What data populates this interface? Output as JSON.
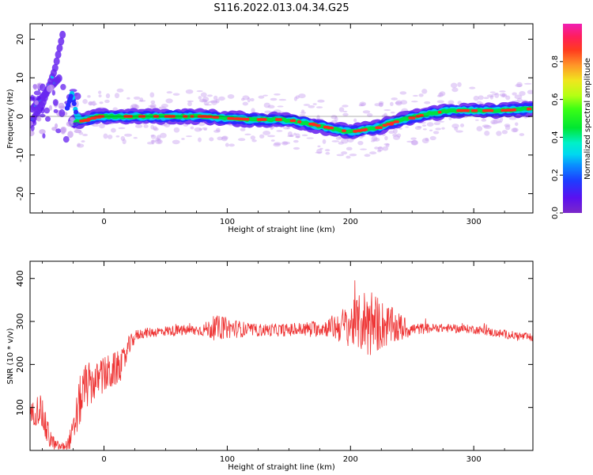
{
  "title": "S116.2022.013.04.34.G25",
  "chart_data": [
    {
      "type": "heatmap",
      "xlabel": "Height of straight line (km)",
      "ylabel": "Frequency (Hz)",
      "xlim": [
        -60,
        348
      ],
      "ylim": [
        -25,
        24
      ],
      "xticks": [
        "0",
        "100",
        "200",
        "300"
      ],
      "xtick_values": [
        0,
        100,
        200,
        300
      ],
      "yticks": [
        "20",
        "10",
        "0",
        "-10",
        "-20"
      ],
      "ytick_values": [
        20,
        10,
        0,
        -10,
        -20
      ],
      "colorbar": {
        "label": "Normalized spectral amplitude",
        "ticks": [
          "0.0",
          "0.2",
          "0.4",
          "0.6",
          "0.8"
        ],
        "tick_values": [
          0.0,
          0.2,
          0.4,
          0.6,
          0.8
        ],
        "range": [
          0,
          1
        ],
        "colormap": "gist_ncar-like (purple-blue-cyan-green-yellow-orange-red-magenta)"
      },
      "ridge": {
        "x": [
          -24,
          -16,
          -5,
          10,
          30,
          55,
          80,
          100,
          120,
          140,
          150,
          160,
          175,
          190,
          200,
          210,
          220,
          230,
          240,
          260,
          280,
          300,
          320,
          348
        ],
        "y": [
          -1.5,
          -1,
          0,
          0,
          0,
          0,
          0,
          -0.5,
          -0.8,
          -0.8,
          -1,
          -1.5,
          -2.5,
          -3.5,
          -4,
          -3.5,
          -3,
          -2,
          -1,
          0.5,
          1.5,
          1.5,
          1.5,
          2
        ]
      },
      "early_arcs": [
        {
          "x": [
            -60,
            -50,
            -40,
            -33
          ],
          "y": [
            -2,
            3,
            12,
            22
          ]
        },
        {
          "x": [
            -58,
            -50,
            -42,
            -36
          ],
          "y": [
            2,
            5,
            8,
            10
          ]
        }
      ]
    },
    {
      "type": "line",
      "xlabel": "Height of straight line (km)",
      "ylabel": "SNR (10 * v/v)",
      "xlim": [
        -60,
        348
      ],
      "ylim": [
        0,
        440
      ],
      "xticks": [
        "0",
        "100",
        "200",
        "300"
      ],
      "xtick_values": [
        0,
        100,
        200,
        300
      ],
      "yticks": [
        "400",
        "300",
        "200",
        "100"
      ],
      "ytick_values": [
        400,
        300,
        200,
        100
      ],
      "color": "#ee3333",
      "envelope": {
        "x": [
          -60,
          -52,
          -46,
          -40,
          -35,
          -30,
          -25,
          -20,
          -15,
          -10,
          -5,
          0,
          5,
          10,
          15,
          20,
          25,
          30,
          50,
          80,
          90,
          100,
          120,
          150,
          180,
          195,
          205,
          212,
          216,
          220,
          230,
          240,
          250,
          270,
          300,
          320,
          348
        ],
        "y": [
          80,
          100,
          40,
          12,
          8,
          12,
          40,
          110,
          150,
          155,
          165,
          175,
          180,
          190,
          200,
          240,
          265,
          272,
          278,
          280,
          285,
          285,
          280,
          280,
          285,
          290,
          295,
          300,
          300,
          295,
          290,
          285,
          282,
          285,
          282,
          272,
          262
        ],
        "noise": [
          25,
          40,
          35,
          15,
          10,
          12,
          35,
          60,
          55,
          50,
          40,
          45,
          45,
          40,
          35,
          25,
          15,
          12,
          12,
          14,
          30,
          25,
          15,
          15,
          20,
          45,
          60,
          80,
          90,
          70,
          50,
          35,
          15,
          10,
          10,
          10,
          10
        ]
      }
    }
  ]
}
